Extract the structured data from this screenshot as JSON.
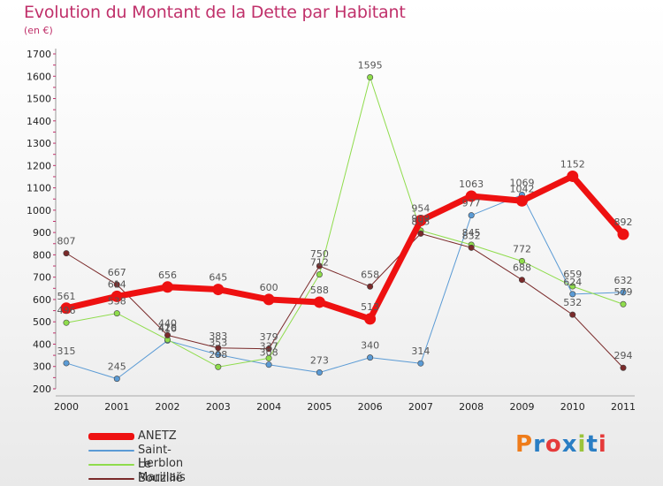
{
  "header": {
    "title": "Evolution du Montant de la Dette par Habitant",
    "unit": "(en €)"
  },
  "brand": {
    "text": "Proxiti",
    "colors": [
      "#ef7c1a",
      "#2a7ec4",
      "#e53a3a",
      "#2a7ec4",
      "#9bc43b",
      "#2a7ec4",
      "#e53a3a"
    ]
  },
  "chart_data": {
    "type": "line",
    "title": "Evolution du Montant de la Dette par Habitant",
    "subtitle": "(en €)",
    "x": [
      "2000",
      "2001",
      "2002",
      "2003",
      "2004",
      "2005",
      "2006",
      "2007",
      "2008",
      "2009",
      "2010",
      "2011"
    ],
    "ylim": [
      200,
      1700
    ],
    "yticks": [
      200,
      300,
      400,
      500,
      600,
      700,
      800,
      900,
      1000,
      1100,
      1200,
      1300,
      1400,
      1500,
      1600,
      1700
    ],
    "grid": false,
    "legend_position": "bottom-left",
    "series": [
      {
        "name": "Saint-Herblon",
        "color": "#5b9bd5",
        "line_width": 1,
        "values": [
          315,
          245,
          416,
          353,
          308,
          273,
          340,
          314,
          977,
          1069,
          624,
          632
        ]
      },
      {
        "name": "Le Marillais",
        "color": "#8fdc4c",
        "line_width": 1,
        "values": [
          496,
          538,
          420,
          298,
          337,
          712,
          1595,
          909,
          845,
          772,
          659,
          579
        ]
      },
      {
        "name": "Bouzillé",
        "color": "#7a2a2a",
        "line_width": 1,
        "values": [
          807,
          667,
          440,
          383,
          379,
          750,
          658,
          895,
          832,
          688,
          532,
          294
        ]
      },
      {
        "name": "ANETZ",
        "color": "#ee1111",
        "line_width": 7,
        "values": [
          561,
          614,
          656,
          645,
          600,
          588,
          513,
          954,
          1063,
          1042,
          1152,
          892
        ]
      }
    ],
    "legend_order": [
      "ANETZ",
      "Saint-Herblon",
      "Le Marillais",
      "Bouzillé"
    ]
  }
}
